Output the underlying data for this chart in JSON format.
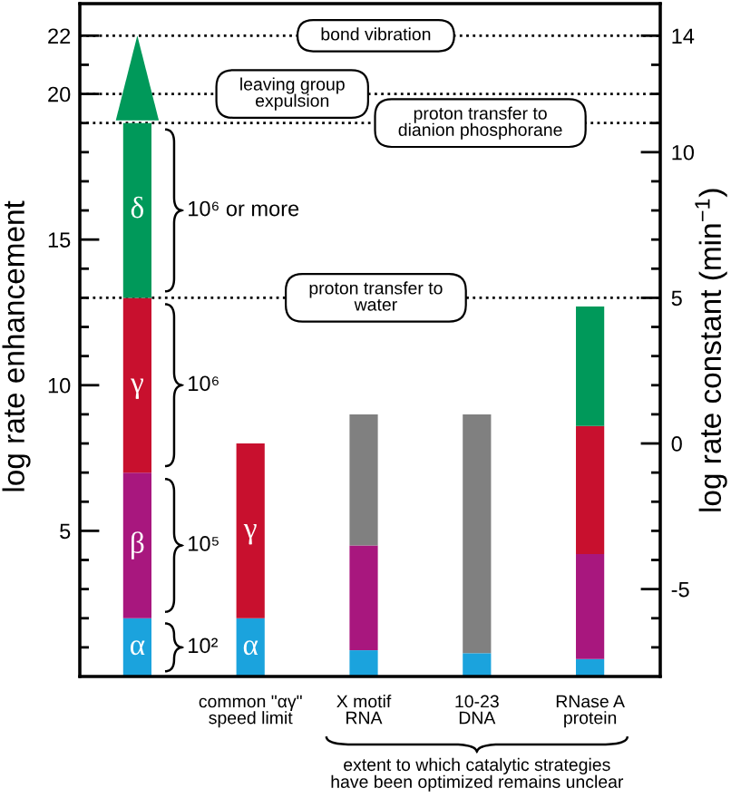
{
  "chart_data": {
    "type": "bar",
    "stacked": true,
    "ylabel": "log rate enhancement",
    "y2label": "log rate constant (min$^{−1}$)",
    "categories": [
      null,
      "common \"αγ\"\nspeed limit",
      "X motif\nRNA",
      "10-23\nDNA",
      "RNase A\nprotein"
    ],
    "series": [
      {
        "color": "#1ba3dd",
        "values": [
          2,
          2,
          0.9,
          0.8,
          0.6
        ],
        "value_labels": [
          "α",
          "α",
          null,
          null,
          null
        ]
      },
      {
        "color": "#a8177e",
        "values": [
          5,
          null,
          3.6,
          null,
          3.6
        ],
        "value_labels": [
          "β",
          null,
          null,
          null,
          null
        ]
      },
      {
        "color": "#c8102e",
        "values": [
          6,
          6,
          null,
          null,
          4.4
        ],
        "value_labels": [
          "γ",
          "γ",
          null,
          null,
          null
        ]
      },
      {
        "color": "#00995a",
        "values": [
          6,
          null,
          null,
          null,
          4.1
        ],
        "value_labels": [
          "δ",
          null,
          null,
          null,
          null
        ]
      },
      {
        "color": "#808080",
        "values": [
          null,
          null,
          4.5,
          8.2,
          null
        ]
      }
    ],
    "ylim": [
      0,
      23.1
    ],
    "yticks": [
      {
        "value": 1,
        "label": null
      },
      {
        "value": 2,
        "label": null
      },
      {
        "value": 3,
        "label": null
      },
      {
        "value": 4,
        "label": null
      },
      5,
      {
        "value": 6,
        "label": null
      },
      {
        "value": 7,
        "label": null
      },
      {
        "value": 8,
        "label": null
      },
      {
        "value": 9,
        "label": null
      },
      10,
      {
        "value": 11,
        "label": null
      },
      {
        "value": 12,
        "label": null
      },
      {
        "value": 13,
        "label": null
      },
      {
        "value": 14,
        "label": null
      },
      15,
      {
        "value": 16,
        "label": null
      },
      {
        "value": 17,
        "label": null
      },
      {
        "value": 18,
        "label": null
      },
      {
        "value": 19,
        "label": null
      },
      20,
      {
        "value": 21,
        "label": null
      },
      22
    ],
    "y2lim": [
      -8,
      15.1
    ],
    "y2ticks": [
      {
        "value": -7,
        "label": null
      },
      {
        "value": -6,
        "label": null
      },
      -5,
      {
        "value": -4,
        "label": null
      },
      {
        "value": -3,
        "label": null
      },
      {
        "value": -2,
        "label": null
      },
      {
        "value": -1,
        "label": null
      },
      0,
      {
        "value": 1,
        "label": null
      },
      {
        "value": 2,
        "label": null
      },
      {
        "value": 3,
        "label": null
      },
      {
        "value": 4,
        "label": null
      },
      5,
      {
        "value": 6,
        "label": null
      },
      {
        "value": 7,
        "label": null
      },
      {
        "value": 8,
        "label": null
      },
      {
        "value": 9,
        "label": null
      },
      10,
      {
        "value": 11,
        "label": null
      },
      {
        "value": 12,
        "label": null
      },
      {
        "value": 13,
        "label": null
      },
      14
    ],
    "ref_lines": [
      {
        "axis": "y",
        "value": 22,
        "label": "bond vibration",
        "color": "#000000",
        "line_style": "dotted"
      },
      {
        "axis": "y",
        "value": 20,
        "label": "leaving group\nexpulsion",
        "color": "#000000",
        "line_style": "dotted"
      },
      {
        "axis": "y",
        "value": 19,
        "label": "proton transfer to\ndianion phosphorane",
        "color": "#000000",
        "line_style": "dotted"
      },
      {
        "axis": "y",
        "value": 13,
        "label": "proton transfer to\nwater",
        "color": "#000000",
        "line_style": "dotted"
      }
    ],
    "annotations": [
      "10²",
      "10⁵",
      "10⁶",
      "10⁶ or more",
      "extent to which catalytic strategies\nhave been optimized remains unclear"
    ]
  }
}
